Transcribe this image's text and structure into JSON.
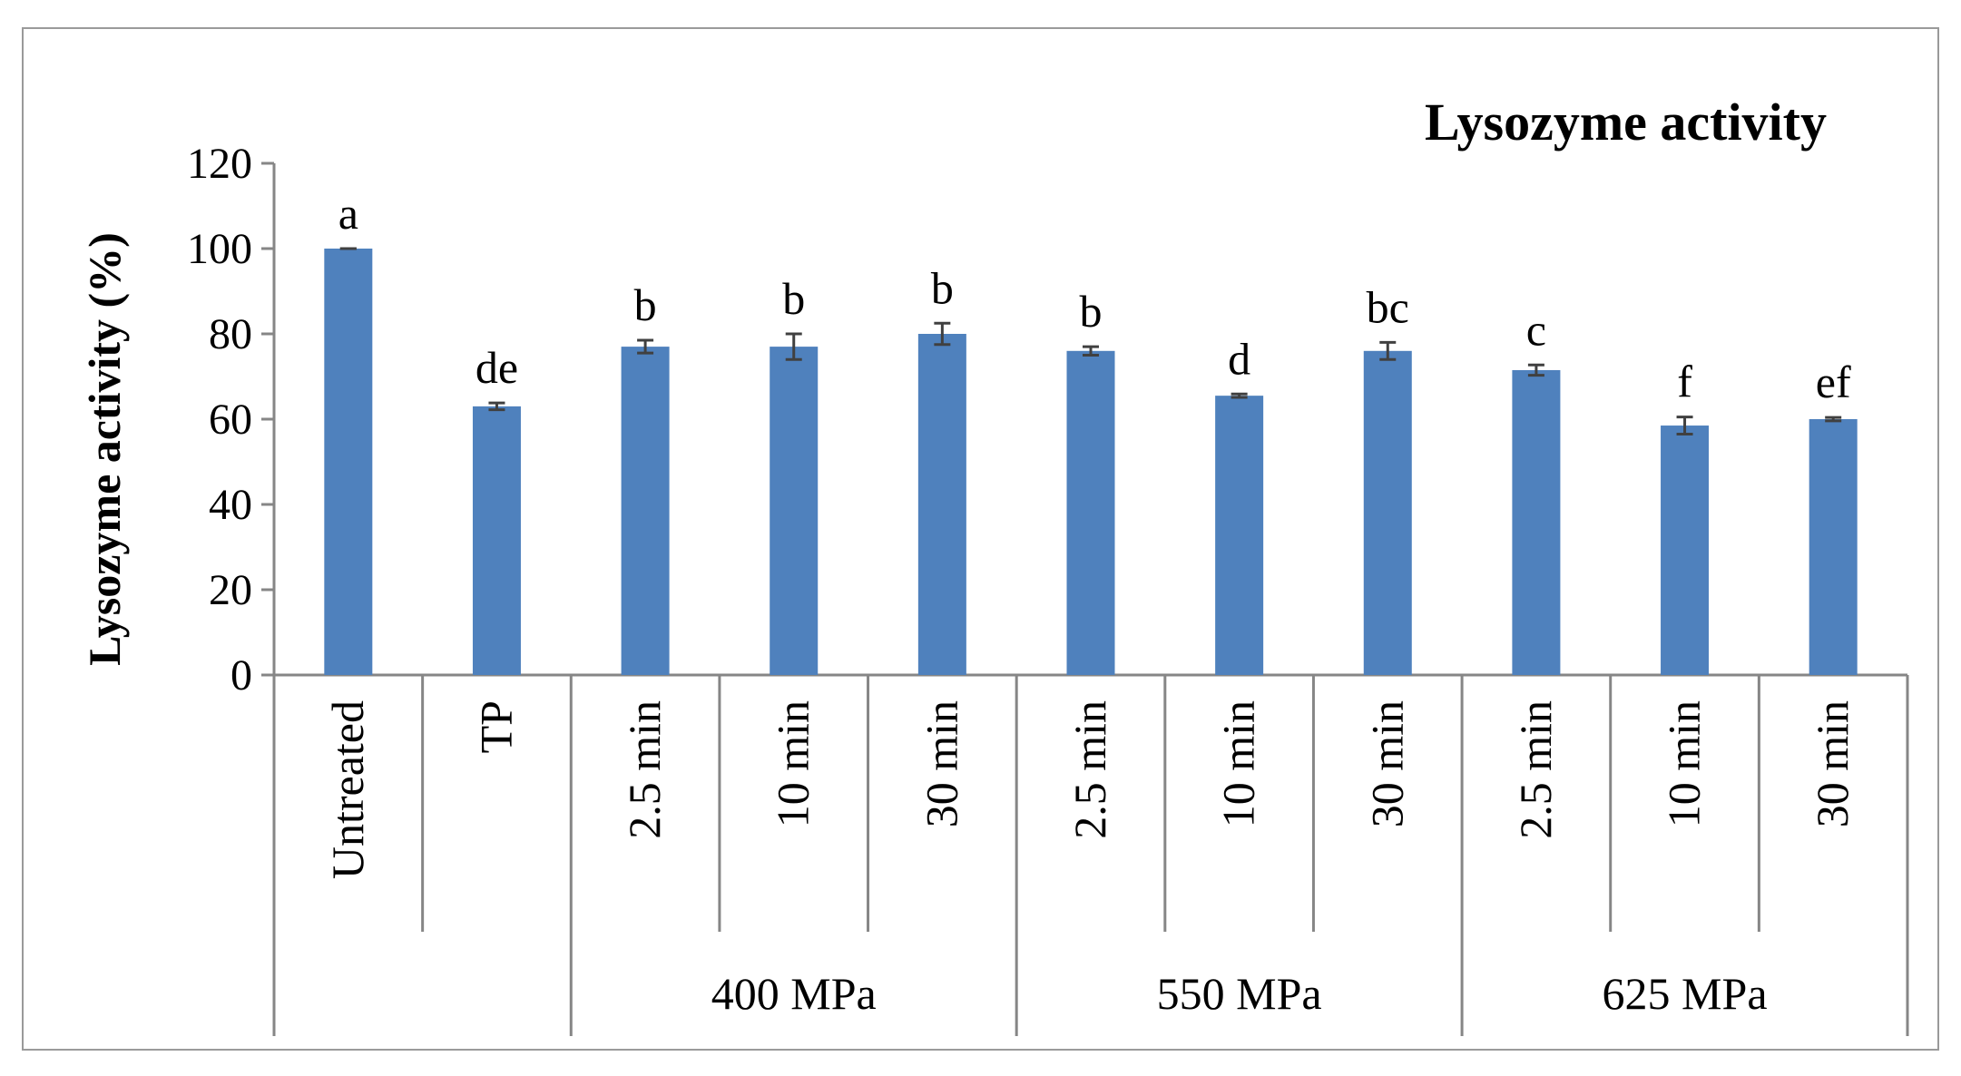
{
  "chart_data": {
    "type": "bar",
    "title": "Lysozyme  activity",
    "ylabel": "Lysozyme activity (%)",
    "xlabel": "",
    "ylim": [
      0,
      120
    ],
    "yticks": [
      0,
      20,
      40,
      60,
      80,
      100,
      120
    ],
    "grid": false,
    "legend": "none",
    "bar_color": "#4f81bd",
    "error_color": "#404040",
    "categories": [
      "Untreated",
      "TP",
      "2.5 min",
      "10 min",
      "30 min",
      "2.5 min",
      "10 min",
      "30 min",
      "2.5 min",
      "10 min",
      "30 min"
    ],
    "values": [
      100,
      63,
      77,
      77,
      80,
      76,
      65.5,
      76,
      71.5,
      58.5,
      60
    ],
    "errors": [
      0,
      0.8,
      1.5,
      3.0,
      2.5,
      1.0,
      0.4,
      2.0,
      1.2,
      2.0,
      0.4
    ],
    "significance_letters": [
      "a",
      "de",
      "b",
      "b",
      "b",
      "b",
      "d",
      "bc",
      "c",
      "f",
      "ef"
    ],
    "groups": [
      {
        "label": "",
        "categories": [
          "Untreated"
        ]
      },
      {
        "label": "",
        "categories": [
          "TP"
        ]
      },
      {
        "label": "400 MPa",
        "categories": [
          "2.5 min",
          "10 min",
          "30 min"
        ]
      },
      {
        "label": "550 MPa",
        "categories": [
          "2.5 min",
          "10 min",
          "30 min"
        ]
      },
      {
        "label": "625 MPa",
        "categories": [
          "2.5 min",
          "10 min",
          "30 min"
        ]
      }
    ]
  }
}
